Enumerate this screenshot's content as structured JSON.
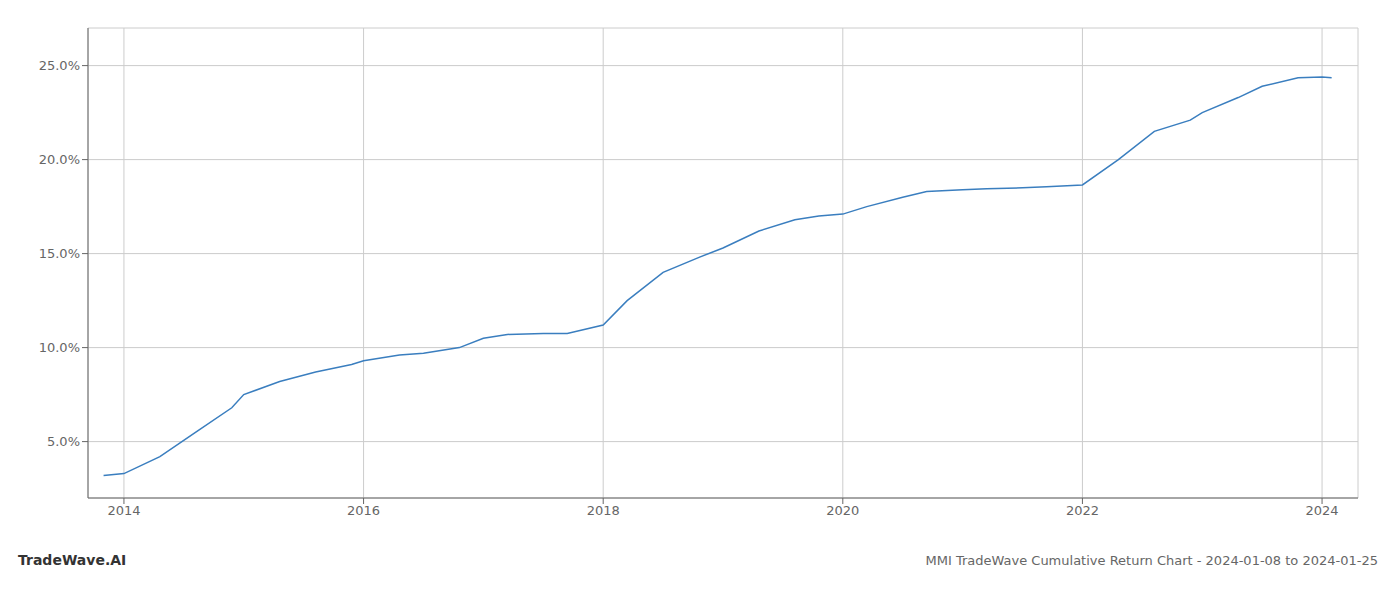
{
  "chart_data": {
    "type": "line",
    "title": "MMI TradeWave Cumulative Return Chart - 2024-01-08 to 2024-01-25",
    "annotations": [
      "TradeWave.AI"
    ],
    "x": [
      2013.83,
      2014.0,
      2014.3,
      2014.6,
      2014.9,
      2015.0,
      2015.3,
      2015.6,
      2015.9,
      2016.0,
      2016.3,
      2016.5,
      2016.8,
      2017.0,
      2017.2,
      2017.5,
      2017.7,
      2018.0,
      2018.2,
      2018.5,
      2018.8,
      2019.0,
      2019.3,
      2019.6,
      2019.8,
      2020.0,
      2020.2,
      2020.5,
      2020.7,
      2021.0,
      2021.2,
      2021.5,
      2021.7,
      2022.0,
      2022.3,
      2022.6,
      2022.9,
      2023.0,
      2023.3,
      2023.5,
      2023.8,
      2024.0,
      2024.08
    ],
    "values": [
      3.2,
      3.3,
      4.2,
      5.5,
      6.8,
      7.5,
      8.2,
      8.7,
      9.1,
      9.3,
      9.6,
      9.7,
      10.0,
      10.5,
      10.7,
      10.75,
      10.75,
      11.2,
      12.5,
      14.0,
      14.8,
      15.3,
      16.2,
      16.8,
      17.0,
      17.1,
      17.5,
      18.0,
      18.3,
      18.4,
      18.45,
      18.5,
      18.55,
      18.65,
      20.0,
      21.5,
      22.1,
      22.5,
      23.3,
      23.9,
      24.35,
      24.4,
      24.35
    ],
    "color": "#3a7ebf",
    "xlim": [
      2013.7,
      2024.3
    ],
    "ylim": [
      2.0,
      27.0
    ],
    "xticks": [
      2014,
      2016,
      2018,
      2020,
      2022,
      2024
    ],
    "yticks": [
      {
        "value": 5.0,
        "label": "5.0%"
      },
      {
        "value": 10.0,
        "label": "10.0%"
      },
      {
        "value": 15.0,
        "label": "15.0%"
      },
      {
        "value": 20.0,
        "label": "20.0%"
      },
      {
        "value": 25.0,
        "label": "25.0%"
      }
    ],
    "grid": true
  }
}
